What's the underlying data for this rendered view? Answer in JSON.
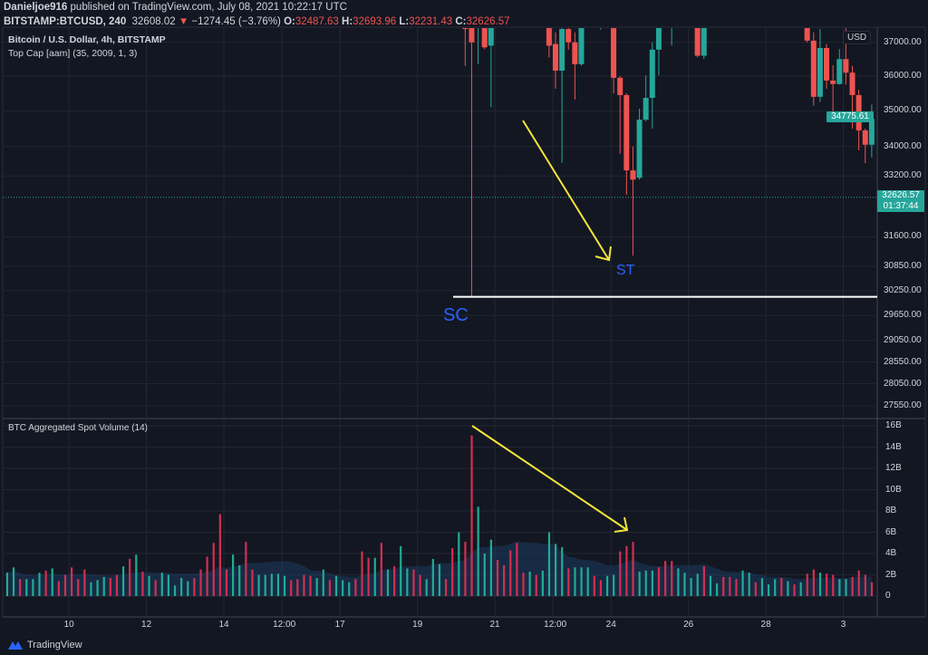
{
  "header": {
    "author": "Danieljoe916",
    "published": "published on TradingView.com, July 08, 2021 10:22:17 UTC",
    "symbol": "BITSTAMP:BTCUSD, 240",
    "last": "32608.02",
    "change": "−1274.45 (−3.76%)",
    "o_label": "O:",
    "o": "32487.63",
    "h_label": "H:",
    "h": "32693.96",
    "l_label": "L:",
    "l": "32231.43",
    "c_label": "C:",
    "c": "32626.57"
  },
  "price_panel": {
    "title": "Bitcoin / U.S. Dollar, 4h, BITSTAMP",
    "indicator": "Top Cap [aam] (35, 2009, 1, 3)",
    "currency": "USD",
    "last_bar_label": "34775.61",
    "current_price_label": "32626.57",
    "countdown": "01:37:44",
    "annotations": {
      "sc": "SC",
      "st": "ST"
    }
  },
  "volume_panel": {
    "title": "BTC Aggregated Spot Volume (14)"
  },
  "footer": {
    "brand": "TradingView"
  },
  "colors": {
    "up": "#26a69a",
    "down": "#ef5350",
    "vol_up": "#22ab94",
    "vol_down": "#d32f50",
    "arrow": "#f5e63a",
    "annotation": "#2962ff",
    "bg": "#131722"
  },
  "chart_data": [
    {
      "type": "candlestick",
      "title": "Bitcoin / U.S. Dollar, 4h, BITSTAMP",
      "yscale": "log",
      "yticks": [
        "37000.00",
        "36000.00",
        "35000.00",
        "34000.00",
        "33200.00",
        "31600.00",
        "30850.00",
        "30250.00",
        "29650.00",
        "29050.00",
        "28550.00",
        "28050.00",
        "27550.00"
      ],
      "ytick_values": [
        37000,
        36000,
        35000,
        34000,
        33200,
        31600,
        30850,
        30250,
        29650,
        29050,
        28550,
        28050,
        27550
      ],
      "xticks": [
        "12:00",
        "10",
        "12",
        "14",
        "12:00",
        "17",
        "19",
        "21",
        "12:00",
        "24",
        "26",
        "28",
        "3"
      ],
      "xtick_bars": [
        -6,
        9,
        21,
        33,
        42,
        51,
        63,
        75,
        84,
        93,
        105,
        117,
        129
      ],
      "support_line": 30100,
      "candles": [
        {
          "t": 71,
          "o": 38000,
          "h": 38500,
          "l": 36300,
          "c": 37400
        },
        {
          "t": 72,
          "o": 37500,
          "h": 38000,
          "l": 30100,
          "c": 37000
        },
        {
          "t": 73,
          "o": 37600,
          "h": 38500,
          "l": 36350,
          "c": 38200
        },
        {
          "t": 74,
          "o": 37500,
          "h": 38000,
          "l": 36800,
          "c": 36850
        },
        {
          "t": 75,
          "o": 36900,
          "h": 37800,
          "l": 35100,
          "c": 37500
        },
        {
          "t": 84,
          "o": 37600,
          "h": 38000,
          "l": 36550,
          "c": 36900
        },
        {
          "t": 85,
          "o": 36950,
          "h": 37300,
          "l": 35630,
          "c": 36160
        },
        {
          "t": 86,
          "o": 36160,
          "h": 37600,
          "l": 33550,
          "c": 37400
        },
        {
          "t": 87,
          "o": 37400,
          "h": 37700,
          "l": 36780,
          "c": 37000
        },
        {
          "t": 88,
          "o": 37000,
          "h": 37300,
          "l": 35320,
          "c": 36350
        },
        {
          "t": 89,
          "o": 36350,
          "h": 37800,
          "l": 36300,
          "c": 37450
        },
        {
          "t": 92,
          "o": 37450,
          "h": 37700,
          "l": 37380,
          "c": 37520
        },
        {
          "t": 94,
          "o": 37450,
          "h": 37700,
          "l": 35500,
          "c": 35950
        },
        {
          "t": 95,
          "o": 35950,
          "h": 36000,
          "l": 33800,
          "c": 35450
        },
        {
          "t": 96,
          "o": 35450,
          "h": 35500,
          "l": 32700,
          "c": 33350
        },
        {
          "t": 97,
          "o": 33350,
          "h": 34000,
          "l": 31120,
          "c": 33100
        },
        {
          "t": 98,
          "o": 33150,
          "h": 35060,
          "l": 33100,
          "c": 34750
        },
        {
          "t": 99,
          "o": 34750,
          "h": 36020,
          "l": 34700,
          "c": 35370
        },
        {
          "t": 100,
          "o": 35370,
          "h": 37000,
          "l": 34500,
          "c": 36780
        },
        {
          "t": 101,
          "o": 36780,
          "h": 37800,
          "l": 36020,
          "c": 37450
        },
        {
          "t": 103,
          "o": 37700,
          "h": 38200,
          "l": 36900,
          "c": 38000
        },
        {
          "t": 107,
          "o": 37450,
          "h": 37800,
          "l": 36550,
          "c": 36600
        },
        {
          "t": 108,
          "o": 36600,
          "h": 37800,
          "l": 36500,
          "c": 37450
        },
        {
          "t": 124,
          "o": 37450,
          "h": 38000,
          "l": 37000,
          "c": 37050
        },
        {
          "t": 125,
          "o": 37050,
          "h": 37300,
          "l": 35150,
          "c": 35400
        },
        {
          "t": 126,
          "o": 35400,
          "h": 37400,
          "l": 35250,
          "c": 36830
        },
        {
          "t": 127,
          "o": 36830,
          "h": 36950,
          "l": 35630,
          "c": 35870
        },
        {
          "t": 128,
          "o": 35870,
          "h": 36320,
          "l": 34770,
          "c": 35770
        },
        {
          "t": 129,
          "o": 35770,
          "h": 36800,
          "l": 35750,
          "c": 36500
        },
        {
          "t": 130,
          "o": 36500,
          "h": 37450,
          "l": 35750,
          "c": 36100
        },
        {
          "t": 131,
          "o": 36100,
          "h": 36300,
          "l": 34500,
          "c": 35450
        },
        {
          "t": 132,
          "o": 35450,
          "h": 35600,
          "l": 33900,
          "c": 34450
        },
        {
          "t": 133,
          "o": 34450,
          "h": 34500,
          "l": 33550,
          "c": 34050
        },
        {
          "t": 134,
          "o": 34050,
          "h": 35180,
          "l": 33700,
          "c": 34775.61
        }
      ]
    },
    {
      "type": "bar",
      "title": "BTC Aggregated Spot Volume (14)",
      "yunit": "B",
      "ylim": [
        0,
        16
      ],
      "yticks": [
        "16B",
        "14B",
        "12B",
        "10B",
        "8B",
        "6B",
        "4B",
        "2B",
        "0"
      ],
      "ytick_values": [
        16,
        14,
        12,
        10,
        8,
        6,
        4,
        2,
        0
      ],
      "values": [
        2.2,
        2.7,
        1.6,
        1.6,
        1.6,
        2.2,
        2.4,
        2.6,
        1.4,
        2.0,
        2.7,
        1.6,
        2.5,
        1.3,
        1.5,
        1.8,
        1.7,
        2.0,
        2.8,
        3.5,
        3.9,
        2.3,
        1.9,
        1.5,
        2.2,
        2.0,
        1.0,
        1.7,
        1.4,
        1.7,
        2.5,
        3.7,
        5.0,
        7.7,
        2.5,
        3.9,
        2.9,
        5.1,
        2.5,
        2.0,
        2.0,
        2.1,
        2.1,
        1.9,
        1.5,
        1.6,
        2.0,
        1.9,
        1.7,
        2.5,
        1.5,
        1.9,
        1.5,
        1.3,
        1.6,
        4.2,
        3.6,
        3.6,
        5.0,
        2.5,
        2.8,
        4.7,
        2.6,
        2.5,
        2.0,
        1.6,
        3.5,
        3.0,
        1.6,
        4.5,
        6.0,
        5.1,
        15.1,
        8.4,
        4.0,
        5.3,
        3.4,
        2.9,
        4.3,
        5.0,
        2.2,
        2.3,
        2.0,
        2.4,
        6.0,
        4.9,
        4.6,
        2.6,
        2.7,
        2.7,
        2.7,
        1.9,
        1.5,
        1.9,
        2.0,
        4.2,
        4.7,
        5.1,
        2.3,
        2.4,
        2.4,
        2.7,
        3.3,
        3.3,
        2.6,
        2.2,
        1.7,
        2.1,
        2.8,
        1.9,
        1.2,
        1.8,
        1.8,
        1.6,
        2.4,
        2.2,
        1.3,
        1.7,
        1.1,
        1.6,
        1.7,
        1.4,
        1.1,
        1.3,
        2.1,
        2.5,
        2.2,
        2.1,
        2.0,
        1.6,
        1.6,
        1.8,
        2.4,
        2.0,
        1.3
      ],
      "directions": "uuduuududdddduuuddudududuuuuudddddduudduuuuudddduudu uudddududuudduuuddudduuuddddduduuuuduuudduuddduuuddduuuuduuddduuduuudududdudduuddddddudddduddduu",
      "ma_period": 14
    }
  ]
}
